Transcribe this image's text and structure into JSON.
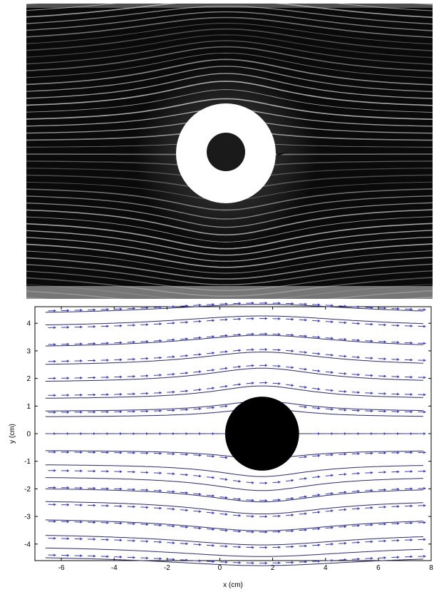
{
  "photo": {
    "description_icon": "flow-visualization-photo",
    "colors": {
      "background": "#0a0a0a",
      "streak": "#d8d8d8",
      "disk": "#ffffff",
      "core": "#1a1a1a"
    }
  },
  "chart_data": {
    "type": "vector-field",
    "title": "",
    "xlabel": "x (cm)",
    "ylabel": "y (cm)",
    "xlim": [
      -7,
      8
    ],
    "ylim": [
      -4.6,
      4.6
    ],
    "xticks": [
      -6,
      -4,
      -2,
      0,
      2,
      4,
      6,
      8
    ],
    "yticks": [
      -4,
      -3,
      -2,
      -1,
      0,
      1,
      2,
      3,
      4
    ],
    "cylinder": {
      "center": [
        1.6,
        0
      ],
      "radius": 1.4,
      "color": "#000000"
    },
    "streamline_starts_y": [
      4.3,
      3.85,
      3.1,
      2.45,
      1.85,
      1.25,
      0.8,
      0.6,
      0,
      -0.6,
      -1.1,
      -1.55,
      -1.95,
      -2.4,
      -3.05,
      -3.6,
      -4.05,
      -4.4
    ],
    "arrow_rows_y": [
      4.35,
      3.75,
      3.15,
      2.55,
      1.95,
      1.35,
      0.75,
      0.0,
      -0.65,
      -1.3,
      -1.9,
      -2.5,
      -3.1,
      -3.7,
      -4.3
    ],
    "arrow_cols_x": [
      -6.5,
      -6.0,
      -5.5,
      -5.0,
      -4.5,
      -4.0,
      -3.5,
      -3.0,
      -2.5,
      -2.0,
      -1.5,
      -1.0,
      -0.5,
      0.0,
      0.5,
      1.0,
      1.5,
      2.0,
      2.5,
      3.0,
      3.5,
      4.0,
      4.5,
      5.0,
      5.5,
      6.0,
      6.5,
      7.0,
      7.5
    ],
    "colors": {
      "streamline": "#2a2a6a",
      "arrow": "#3a3ab4",
      "axis": "#000000"
    }
  }
}
